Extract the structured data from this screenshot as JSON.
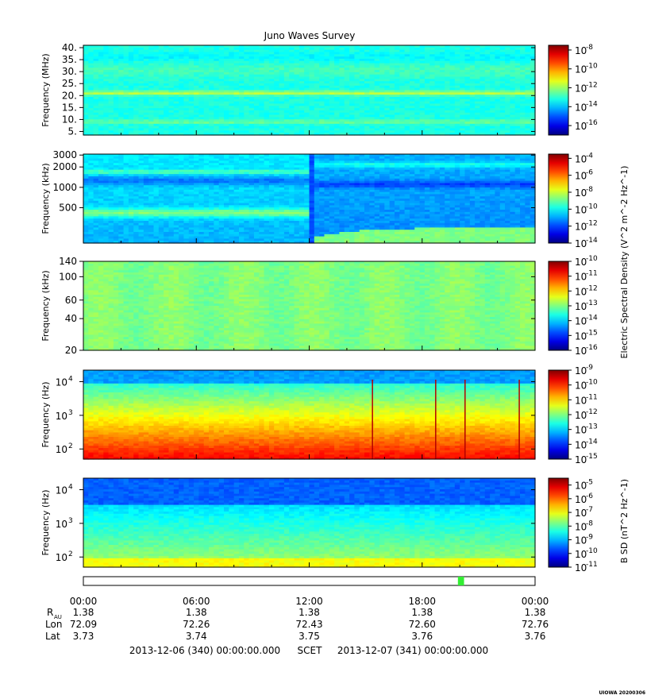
{
  "chart_data": {
    "type": "heatmap",
    "title": "Juno Waves Survey",
    "panels": [
      {
        "ylabel": "Frequency (MHz)",
        "yscale": "linear",
        "yticks": [
          "40.",
          "35.",
          "30.",
          "25.",
          "20.",
          "15.",
          "10.",
          "5."
        ],
        "ytick_values": [
          40,
          35,
          30,
          25,
          20,
          15,
          10,
          5
        ],
        "ylim": [
          3.5,
          41
        ],
        "colorbar_exponents": [
          "-8",
          "-10",
          "-12",
          "-14",
          "-16"
        ],
        "colorbar_range": [
          -17,
          -7.5
        ]
      },
      {
        "ylabel": "Frequency (kHz)",
        "yscale": "log",
        "yticks": [
          "3000",
          "2000",
          "1000",
          "500"
        ],
        "ytick_values": [
          3000,
          2000,
          1000,
          500
        ],
        "ylim": [
          150,
          3100
        ],
        "colorbar_exponents": [
          "-4",
          "-6",
          "-8",
          "-10",
          "-12",
          "-14"
        ],
        "colorbar_range": [
          -14,
          -3.5
        ]
      },
      {
        "ylabel": "Frequency (kHz)",
        "yscale": "log",
        "yticks": [
          "140",
          "100",
          "60",
          "40",
          "20"
        ],
        "ytick_values": [
          140,
          100,
          60,
          40,
          20
        ],
        "ylim": [
          20,
          140
        ],
        "colorbar_exponents": [
          "-10",
          "-11",
          "-12",
          "-13",
          "-14",
          "-15",
          "-16"
        ],
        "colorbar_range": [
          -16,
          -10
        ]
      },
      {
        "ylabel": "Frequency (Hz)",
        "yscale": "log",
        "yticks": [
          "4",
          "3",
          "2"
        ],
        "ytick_values": [
          10000,
          1000,
          100
        ],
        "ylim": [
          50,
          22000
        ],
        "colorbar_exponents": [
          "-9",
          "-10",
          "-11",
          "-12",
          "-13",
          "-14",
          "-15"
        ],
        "colorbar_range": [
          -15,
          -9
        ]
      },
      {
        "ylabel": "Frequency (Hz)",
        "yscale": "log",
        "yticks": [
          "4",
          "3",
          "2"
        ],
        "ytick_values": [
          10000,
          1000,
          100
        ],
        "ylim": [
          50,
          22000
        ],
        "colorbar_exponents": [
          "-5",
          "-6",
          "-7",
          "-8",
          "-9",
          "-10",
          "-11"
        ],
        "colorbar_range": [
          -11,
          -4.5
        ]
      }
    ],
    "tick_base": "10",
    "colorbar_base": "10",
    "colorbar_label_electric": "Electric Spectral Density (V^2 m^-2 Hz^-1)",
    "colorbar_label_magnetic": "B SD (nT^2 Hz^-1)",
    "ephemeris_label": "R",
    "ephemeris_label_sub": "AU",
    "x_ticks": [
      "00:00",
      "06:00",
      "12:00",
      "18:00",
      "00:00"
    ],
    "ephemeris": [
      {
        "label": "R",
        "values": [
          "1.38",
          "1.38",
          "1.38",
          "1.38",
          "1.38"
        ]
      },
      {
        "label": "Lon",
        "values": [
          "72.09",
          "72.26",
          "72.43",
          "72.60",
          "72.76"
        ]
      },
      {
        "label": "Lat",
        "values": [
          "3.73",
          "3.74",
          "3.75",
          "3.76",
          "3.76"
        ]
      }
    ],
    "time_start": "2013-12-06 (340) 00:00:00.000",
    "time_center": "SCET",
    "time_end": "2013-12-07 (341) 00:00:00.000",
    "footer": "UIOWA 20200306",
    "mode_bar_marker_hours": [
      19.9,
      20.1
    ]
  }
}
